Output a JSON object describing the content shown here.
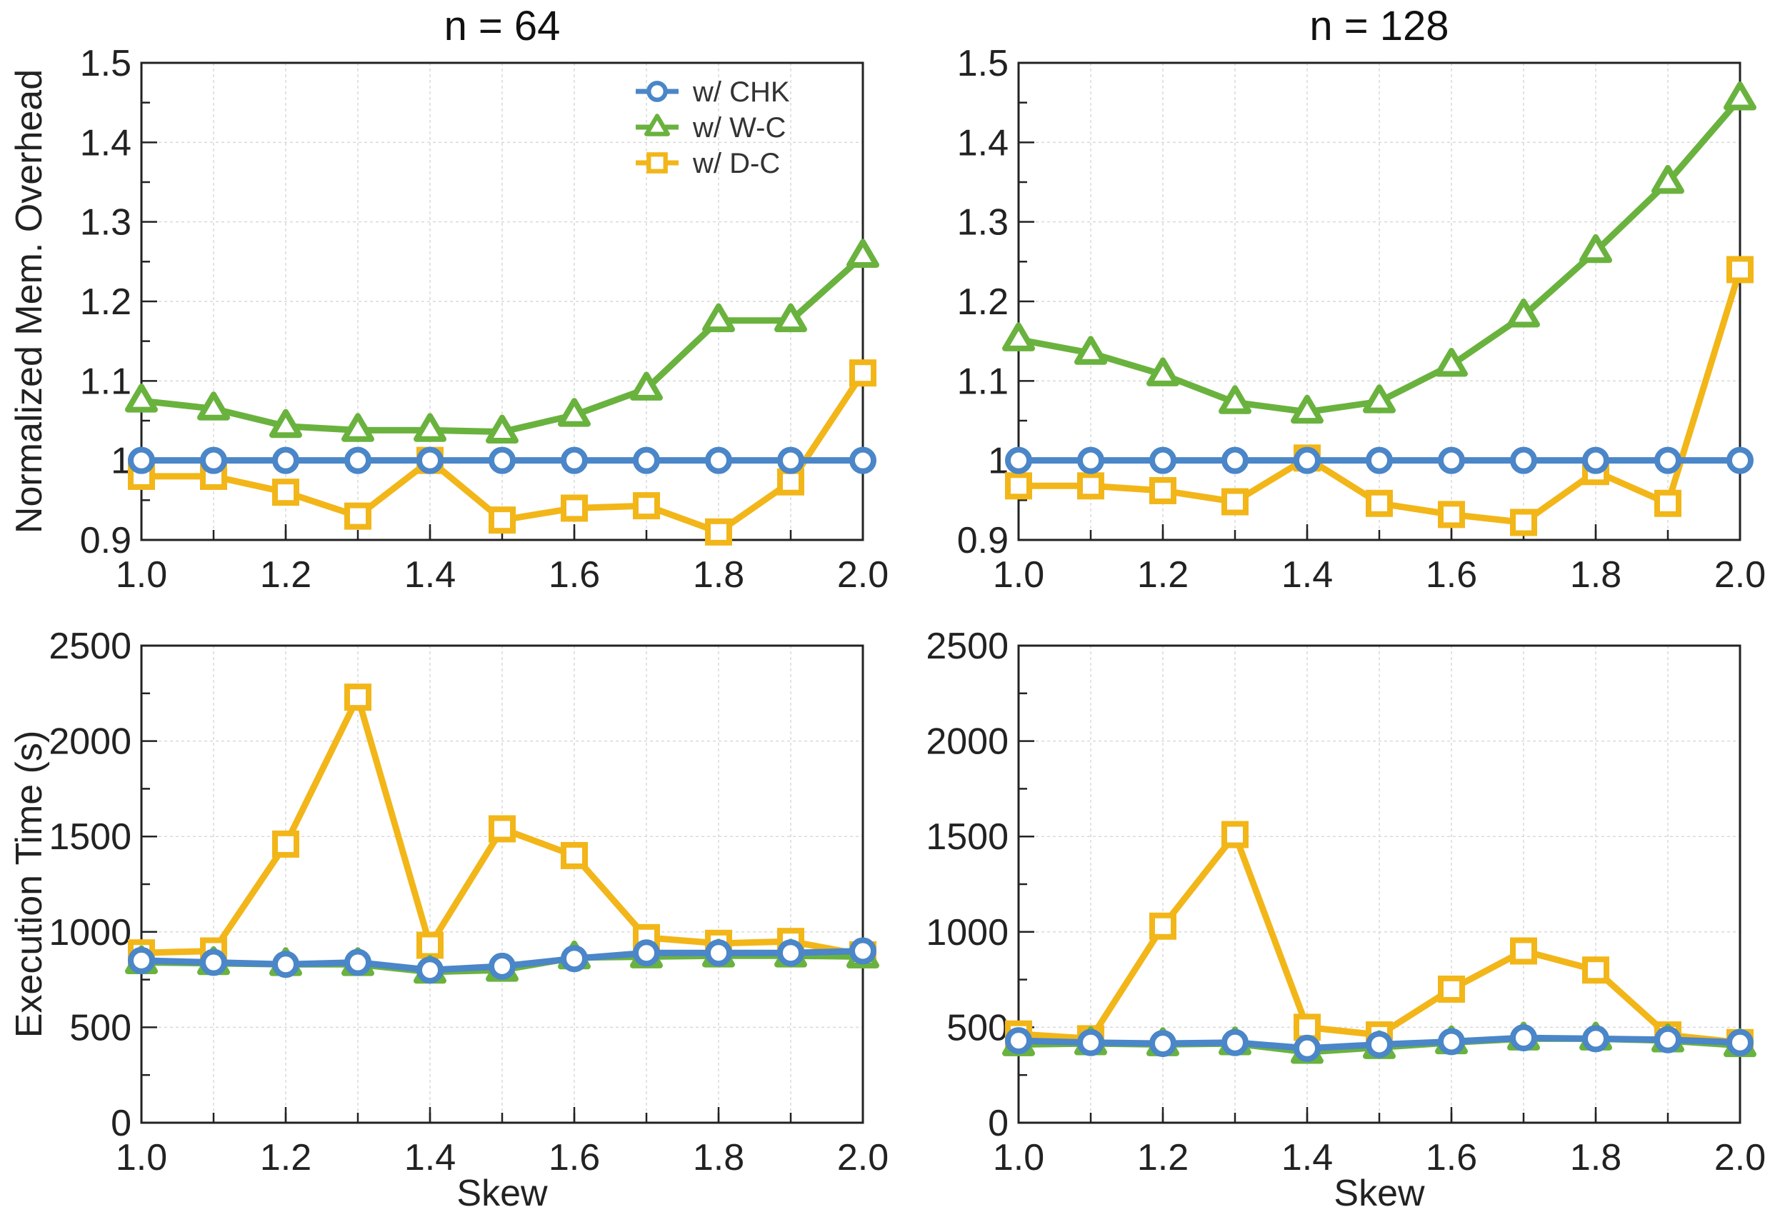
{
  "chart_data": [
    {
      "type": "line",
      "id": "mem-n64",
      "title": "n = 64",
      "xlabel": "",
      "ylabel": "Normalized Mem. Overhead",
      "x": [
        1.0,
        1.1,
        1.2,
        1.3,
        1.4,
        1.5,
        1.6,
        1.7,
        1.8,
        1.9,
        2.0
      ],
      "xlim": [
        1.0,
        2.0
      ],
      "ylim": [
        0.9,
        1.5
      ],
      "xticks": [
        "1.0",
        "1.2",
        "1.4",
        "1.6",
        "1.8",
        "2.0"
      ],
      "yticks": [
        "0.9",
        "1",
        "1.1",
        "1.2",
        "1.3",
        "1.4",
        "1.5"
      ],
      "grid": true,
      "legend": "top-right",
      "series": [
        {
          "name": "w/ CHK",
          "marker": "circle",
          "color": "#4a86c8",
          "values": [
            1.0,
            1.0,
            1.0,
            1.0,
            1.0,
            1.0,
            1.0,
            1.0,
            1.0,
            1.0,
            1.0
          ]
        },
        {
          "name": "w/ W-C",
          "marker": "triangle",
          "color": "#6ab23e",
          "values": [
            1.075,
            1.065,
            1.043,
            1.038,
            1.038,
            1.036,
            1.057,
            1.09,
            1.176,
            1.176,
            1.257
          ]
        },
        {
          "name": "w/ D-C",
          "marker": "square",
          "color": "#f2b619",
          "values": [
            0.98,
            0.98,
            0.96,
            0.93,
            1.0,
            0.925,
            0.94,
            0.943,
            0.91,
            0.973,
            1.11
          ]
        }
      ]
    },
    {
      "type": "line",
      "id": "mem-n128",
      "title": "n = 128",
      "xlabel": "",
      "ylabel": "",
      "x": [
        1.0,
        1.1,
        1.2,
        1.3,
        1.4,
        1.5,
        1.6,
        1.7,
        1.8,
        1.9,
        2.0
      ],
      "xlim": [
        1.0,
        2.0
      ],
      "ylim": [
        0.9,
        1.5
      ],
      "xticks": [
        "1.0",
        "1.2",
        "1.4",
        "1.6",
        "1.8",
        "2.0"
      ],
      "yticks": [
        "0.9",
        "1",
        "1.1",
        "1.2",
        "1.3",
        "1.4",
        "1.5"
      ],
      "grid": true,
      "series": [
        {
          "name": "w/ CHK",
          "marker": "circle",
          "color": "#4a86c8",
          "values": [
            1.0,
            1.0,
            1.0,
            1.0,
            1.0,
            1.0,
            1.0,
            1.0,
            1.0,
            1.0,
            1.0
          ]
        },
        {
          "name": "w/ W-C",
          "marker": "triangle",
          "color": "#6ab23e",
          "values": [
            1.152,
            1.135,
            1.108,
            1.073,
            1.061,
            1.074,
            1.12,
            1.182,
            1.263,
            1.35,
            1.455
          ]
        },
        {
          "name": "w/ D-C",
          "marker": "square",
          "color": "#f2b619",
          "values": [
            0.968,
            0.968,
            0.962,
            0.948,
            1.003,
            0.946,
            0.932,
            0.922,
            0.986,
            0.946,
            1.24
          ]
        }
      ]
    },
    {
      "type": "line",
      "id": "time-n64",
      "title": "",
      "xlabel": "Skew",
      "ylabel": "Execution Time (s)",
      "x": [
        1.0,
        1.1,
        1.2,
        1.3,
        1.4,
        1.5,
        1.6,
        1.7,
        1.8,
        1.9,
        2.0
      ],
      "xlim": [
        1.0,
        2.0
      ],
      "ylim": [
        0,
        2500
      ],
      "xticks": [
        "1.0",
        "1.2",
        "1.4",
        "1.6",
        "1.8",
        "2.0"
      ],
      "yticks": [
        "0",
        "500",
        "1000",
        "1500",
        "2000",
        "2500"
      ],
      "grid": true,
      "series": [
        {
          "name": "w/ CHK",
          "marker": "circle",
          "color": "#4a86c8",
          "values": [
            850,
            840,
            830,
            840,
            800,
            820,
            860,
            890,
            890,
            890,
            900
          ]
        },
        {
          "name": "w/ W-C",
          "marker": "triangle",
          "color": "#6ab23e",
          "values": [
            840,
            835,
            830,
            830,
            790,
            800,
            865,
            870,
            875,
            875,
            870
          ]
        },
        {
          "name": "w/ D-C",
          "marker": "square",
          "color": "#f2b619",
          "values": [
            890,
            900,
            1460,
            2230,
            930,
            1540,
            1400,
            970,
            940,
            950,
            880
          ]
        }
      ]
    },
    {
      "type": "line",
      "id": "time-n128",
      "title": "",
      "xlabel": "Skew",
      "ylabel": "",
      "x": [
        1.0,
        1.1,
        1.2,
        1.3,
        1.4,
        1.5,
        1.6,
        1.7,
        1.8,
        1.9,
        2.0
      ],
      "xlim": [
        1.0,
        2.0
      ],
      "ylim": [
        0,
        2500
      ],
      "xticks": [
        "1.0",
        "1.2",
        "1.4",
        "1.6",
        "1.8",
        "2.0"
      ],
      "yticks": [
        "0",
        "500",
        "1000",
        "1500",
        "2000",
        "2500"
      ],
      "grid": true,
      "series": [
        {
          "name": "w/ CHK",
          "marker": "circle",
          "color": "#4a86c8",
          "values": [
            430,
            420,
            415,
            420,
            390,
            410,
            425,
            445,
            440,
            435,
            420
          ]
        },
        {
          "name": "w/ W-C",
          "marker": "triangle",
          "color": "#6ab23e",
          "values": [
            410,
            415,
            410,
            415,
            370,
            395,
            420,
            440,
            440,
            430,
            405
          ]
        },
        {
          "name": "w/ D-C",
          "marker": "square",
          "color": "#f2b619",
          "values": [
            465,
            440,
            1030,
            1510,
            500,
            460,
            700,
            900,
            800,
            460,
            420
          ]
        }
      ]
    }
  ]
}
